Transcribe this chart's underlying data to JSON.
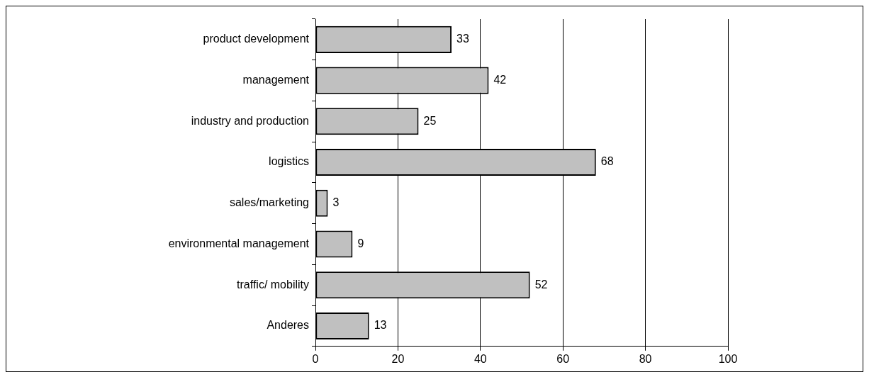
{
  "chart_data": {
    "type": "bar",
    "orientation": "horizontal",
    "categories": [
      "product development",
      "management",
      "industry and production",
      "logistics",
      "sales/marketing",
      "environmental management",
      "traffic/ mobility",
      "Anderes"
    ],
    "values": [
      33,
      42,
      25,
      68,
      3,
      9,
      52,
      13
    ],
    "color": "#c0c0c0",
    "xlim": [
      0,
      100
    ],
    "xticks": [
      0,
      20,
      40,
      60,
      80,
      100
    ],
    "grid": "x",
    "legend": false,
    "data_labels": true
  }
}
